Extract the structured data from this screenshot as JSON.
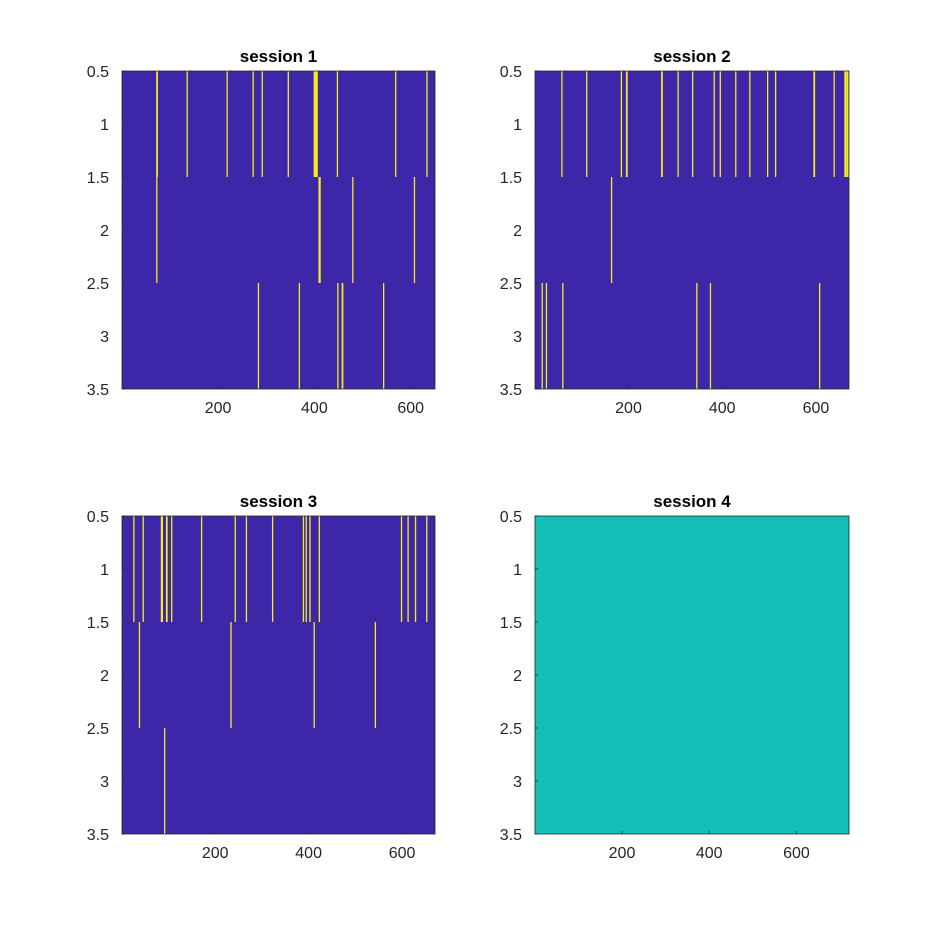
{
  "figure": {
    "background": "#ffffff"
  },
  "colors": {
    "low": "#3e26a8",
    "high": "#f5ee1a",
    "uniform": "#14bfb8",
    "axis": "#262626"
  },
  "chart_data": [
    {
      "type": "heatmap",
      "title": "session 1",
      "xlim": [
        0.5,
        650.5
      ],
      "ylim": [
        0.5,
        3.5
      ],
      "y_reversed": true,
      "xticks": [
        200,
        400,
        600
      ],
      "yticks": [
        0.5,
        1,
        1.5,
        2,
        2.5,
        3,
        3.5
      ],
      "xtick_labels": [
        "200",
        "400",
        "600"
      ],
      "ytick_labels": [
        "0.5",
        "1",
        "1.5",
        "2",
        "2.5",
        "3",
        "3.5"
      ],
      "rows": 3,
      "background_value": 0,
      "events": [
        [
          72,
          73,
          135,
          218,
          272,
          291,
          345,
          399,
          400,
          401,
          402,
          403,
          404,
          405,
          447,
          568,
          633
        ],
        [
          72,
          409,
          410,
          411,
          479,
          607
        ],
        [
          283,
          368,
          448,
          457,
          458,
          543
        ]
      ]
    },
    {
      "type": "heatmap",
      "title": "session 2",
      "xlim": [
        0.5,
        670.5
      ],
      "ylim": [
        0.5,
        3.5
      ],
      "y_reversed": true,
      "xticks": [
        200,
        400,
        600
      ],
      "yticks": [
        0.5,
        1,
        1.5,
        2,
        2.5,
        3,
        3.5
      ],
      "xtick_labels": [
        "200",
        "400",
        "600"
      ],
      "ytick_labels": [
        "0.5",
        "1",
        "1.5",
        "2",
        "2.5",
        "3",
        "3.5"
      ],
      "rows": 3,
      "background_value": 0,
      "events": [
        [
          57,
          110,
          184,
          195,
          196,
          270,
          271,
          305,
          336,
          382,
          395,
          428,
          458,
          496,
          513,
          595,
          596,
          638,
          661,
          662,
          663,
          666,
          667
        ],
        [
          163
        ],
        [
          15,
          24,
          59,
          345,
          374,
          607
        ]
      ]
    },
    {
      "type": "heatmap",
      "title": "session 3",
      "xlim": [
        0.5,
        670.5
      ],
      "ylim": [
        0.5,
        3.5
      ],
      "y_reversed": true,
      "xticks": [
        200,
        400,
        600
      ],
      "yticks": [
        0.5,
        1,
        1.5,
        2,
        2.5,
        3,
        3.5
      ],
      "xtick_labels": [
        "200",
        "400",
        "600"
      ],
      "ytick_labels": [
        "0.5",
        "1",
        "1.5",
        "2",
        "2.5",
        "3",
        "3.5"
      ],
      "rows": 3,
      "background_value": 0,
      "events": [
        [
          25,
          45,
          84,
          86,
          95,
          96,
          106,
          170,
          242,
          266,
          322,
          388,
          394,
          402,
          422,
          598,
          612,
          628,
          652
        ],
        [
          37,
          233,
          411,
          542
        ],
        [
          91
        ]
      ]
    },
    {
      "type": "heatmap",
      "title": "session 4",
      "xlim": [
        0.5,
        720.5
      ],
      "ylim": [
        0.5,
        3.5
      ],
      "y_reversed": true,
      "xticks": [
        200,
        400,
        600
      ],
      "yticks": [
        0.5,
        1,
        1.5,
        2,
        2.5,
        3,
        3.5
      ],
      "xtick_labels": [
        "200",
        "400",
        "600"
      ],
      "ytick_labels": [
        "0.5",
        "1",
        "1.5",
        "2",
        "2.5",
        "3",
        "3.5"
      ],
      "rows": 3,
      "uniform": true,
      "events": [
        [],
        [],
        []
      ]
    }
  ]
}
